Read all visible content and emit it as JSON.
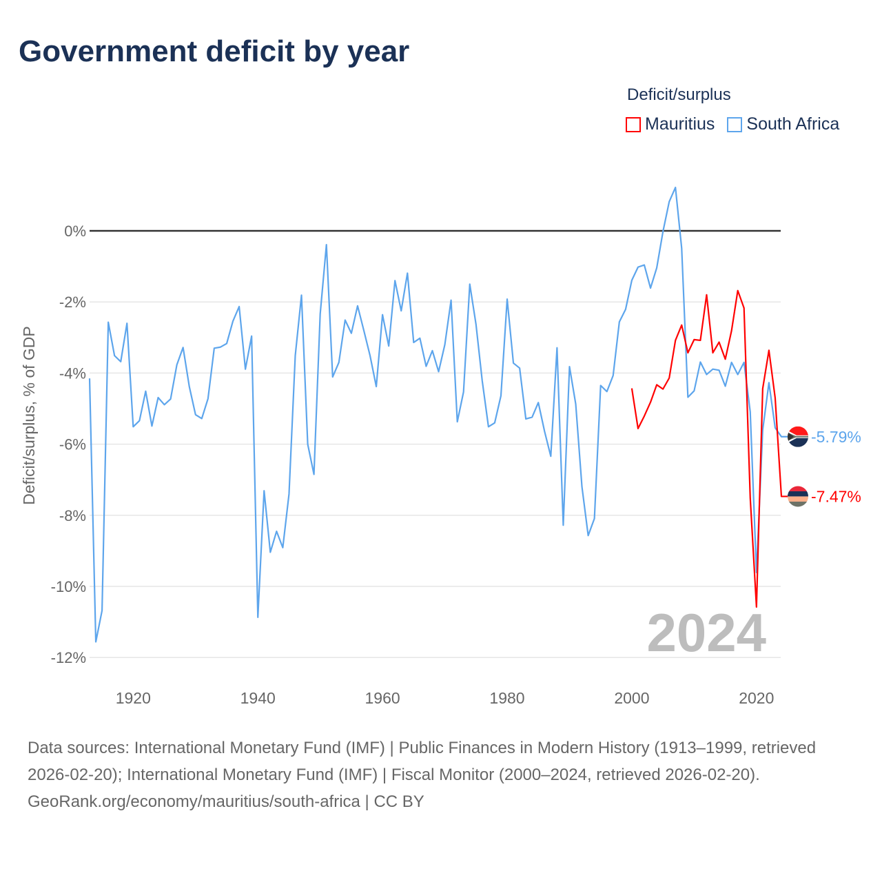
{
  "header": {
    "title": "Government deficit by year"
  },
  "legend": {
    "title": "Deficit/surplus",
    "items": [
      {
        "label": "Mauritius",
        "color": "#ff0000"
      },
      {
        "label": "South Africa",
        "color": "#5da5ec"
      }
    ]
  },
  "watermark_year": "2024",
  "footer": {
    "sources": "Data sources: International Monetary Fund (IMF) | Public Finances in Modern History (1913–1999, retrieved 2026-02-20); International Monetary Fund (IMF) | Fiscal Monitor (2000–2024, retrieved 2026-02-20).",
    "credit": "GeoRank.org/economy/mauritius/south-africa | CC BY"
  },
  "chart_data": {
    "type": "line",
    "title": "Government deficit by year",
    "xlabel": "",
    "ylabel": "Deficit/surplus, % of GDP",
    "xlim": [
      1913,
      2024
    ],
    "ylim": [
      -12,
      1.3
    ],
    "yticks": [
      0,
      -2,
      -4,
      -6,
      -8,
      -10,
      -12
    ],
    "ytick_labels": [
      "0%",
      "-2%",
      "-4%",
      "-6%",
      "-8%",
      "-10%",
      "-12%"
    ],
    "xticks": [
      1920,
      1940,
      1960,
      1980,
      2000,
      2020
    ],
    "xtick_labels": [
      "1920",
      "1940",
      "1960",
      "1980",
      "2000",
      "2020"
    ],
    "grid": true,
    "legend_position": "top-right",
    "series": [
      {
        "name": "Mauritius",
        "color": "#ff0000",
        "end_label": "-7.47%",
        "start_year": 2000,
        "values": [
          -4.43,
          -5.56,
          -5.21,
          -4.82,
          -4.33,
          -4.45,
          -4.14,
          -3.08,
          -2.65,
          -3.43,
          -3.06,
          -3.08,
          -1.8,
          -3.43,
          -3.13,
          -3.61,
          -2.81,
          -1.68,
          -2.17,
          -7.51,
          -10.58,
          -4.44,
          -3.36,
          -4.7,
          -7.47
        ]
      },
      {
        "name": "South Africa",
        "color": "#5da5ec",
        "end_label": "-5.79%",
        "start_year": 1913,
        "values": [
          -4.15,
          -11.56,
          -10.68,
          -2.57,
          -3.51,
          -3.68,
          -2.6,
          -5.51,
          -5.34,
          -4.51,
          -5.49,
          -4.69,
          -4.89,
          -4.73,
          -3.77,
          -3.28,
          -4.38,
          -5.17,
          -5.28,
          -4.72,
          -3.3,
          -3.27,
          -3.17,
          -2.54,
          -2.13,
          -3.89,
          -2.96,
          -10.87,
          -7.31,
          -9.04,
          -8.45,
          -8.91,
          -7.4,
          -3.51,
          -1.81,
          -6.0,
          -6.85,
          -2.34,
          -0.39,
          -4.11,
          -3.7,
          -2.51,
          -2.88,
          -2.11,
          -2.8,
          -3.51,
          -4.38,
          -2.36,
          -3.24,
          -1.4,
          -2.25,
          -1.19,
          -3.14,
          -3.02,
          -3.81,
          -3.37,
          -3.96,
          -3.2,
          -1.95,
          -5.37,
          -4.53,
          -1.5,
          -2.63,
          -4.22,
          -5.51,
          -5.4,
          -4.64,
          -1.92,
          -3.72,
          -3.86,
          -5.29,
          -5.24,
          -4.83,
          -5.64,
          -6.34,
          -3.29,
          -8.28,
          -3.82,
          -4.87,
          -7.2,
          -8.57,
          -8.09,
          -4.35,
          -4.52,
          -4.07,
          -2.56,
          -2.21,
          -1.39,
          -1.02,
          -0.96,
          -1.61,
          -1.04,
          -0.02,
          0.82,
          1.22,
          -0.49,
          -4.68,
          -4.5,
          -3.69,
          -4.04,
          -3.89,
          -3.92,
          -4.37,
          -3.7,
          -4.04,
          -3.7,
          -5.09,
          -9.61,
          -5.6,
          -4.27,
          -5.54,
          -5.79
        ]
      }
    ]
  }
}
